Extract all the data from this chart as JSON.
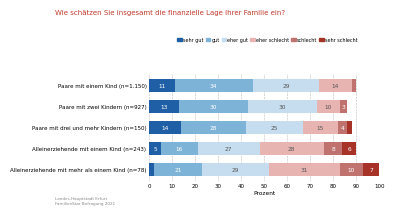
{
  "title": "Wie schätzen Sie insgesamt die finanzielle Lage Ihrer Familie ein?",
  "title_color": "#c0392b",
  "categories": [
    "Paare mit einem Kind (n=1.150)",
    "Paare mit zwei Kindern (n=927)",
    "Paare mit drei und mehr Kindern (n=150)",
    "Alleinerziehende mit einem Kind (n=243)",
    "Alleinerziehende mit mehr als einem Kind (n=78)"
  ],
  "legend_labels": [
    "sehr gut",
    "gut",
    "eher gut",
    "eher schlecht",
    "schlecht",
    "sehr schlecht"
  ],
  "colors": [
    "#1f5fa6",
    "#7eb3d8",
    "#c5ddef",
    "#e8b4b1",
    "#c0736e",
    "#a63228"
  ],
  "data": [
    [
      11,
      34,
      29,
      14,
      2,
      0
    ],
    [
      13,
      30,
      30,
      10,
      3,
      0
    ],
    [
      14,
      28,
      25,
      15,
      4,
      2
    ],
    [
      5,
      16,
      27,
      28,
      8,
      6
    ],
    [
      2,
      21,
      29,
      31,
      10,
      7
    ]
  ],
  "xlabel": "Prozent",
  "xlim": [
    0,
    100
  ],
  "xticks": [
    0,
    10,
    20,
    30,
    40,
    50,
    60,
    70,
    80,
    90,
    100
  ],
  "footnote": "Landes-Hauptstadt Erfurt\nFamilienStar Befragung 2021",
  "bg_color": "#ffffff",
  "label_text_colors": [
    "white",
    "white",
    "#555555",
    "#555555",
    "white",
    "white"
  ]
}
